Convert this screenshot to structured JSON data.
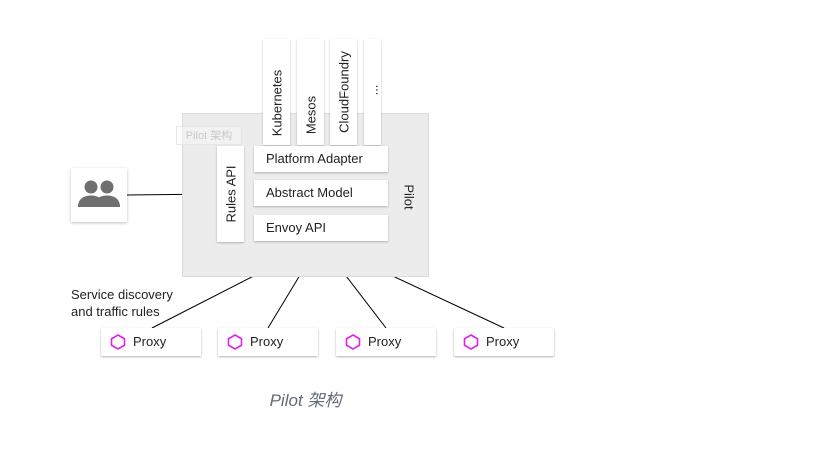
{
  "watermark": "Pilot 架构",
  "platforms": [
    {
      "name": "kubernetes",
      "label": "Kubernetes"
    },
    {
      "name": "mesos",
      "label": "Mesos"
    },
    {
      "name": "cloudfoundry",
      "label": "CloudFoundry"
    },
    {
      "name": "more",
      "label": "..."
    }
  ],
  "layers": {
    "platform_adapter": "Platform Adapter",
    "abstract_model": "Abstract Model",
    "envoy_api": "Envoy API",
    "rules_api": "Rules API"
  },
  "pilot_label": "Pilot",
  "service_discovery_label": [
    "Service discovery",
    "and traffic rules"
  ],
  "proxies": [
    "Proxy",
    "Proxy",
    "Proxy",
    "Proxy"
  ],
  "caption": "Pilot 架构",
  "colors": {
    "proxy_hex": "#e020e8",
    "user_icon": "#6f6f6f",
    "panel": "#ececec",
    "caption": "#5f6b77"
  },
  "icons": {
    "user_group": "users-icon",
    "proxy": "hexagon-icon"
  }
}
